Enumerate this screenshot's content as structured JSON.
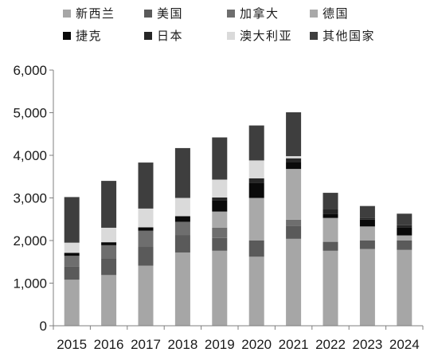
{
  "chart_data": {
    "type": "bar",
    "stacked": true,
    "categories": [
      "2015",
      "2016",
      "2017",
      "2018",
      "2019",
      "2020",
      "2021",
      "2022",
      "2023",
      "2024"
    ],
    "ylim": [
      0,
      6000
    ],
    "yticks": [
      0,
      1000,
      2000,
      3000,
      4000,
      5000,
      6000
    ],
    "ytick_labels": [
      "0",
      "1,000",
      "2,000",
      "3,000",
      "4,000",
      "5,000",
      "6,000"
    ],
    "grid": false,
    "legend_position": "top",
    "series": [
      {
        "name": "新西兰",
        "color": "#a6a6a6",
        "values": [
          1080,
          1190,
          1410,
          1720,
          1760,
          1620,
          2040,
          1760,
          1800,
          1780
        ]
      },
      {
        "name": "美国",
        "color": "#5a5a5a",
        "values": [
          310,
          380,
          440,
          410,
          300,
          380,
          310,
          210,
          200,
          220
        ]
      },
      {
        "name": "加拿大",
        "color": "#6e6e6e",
        "values": [
          250,
          320,
          380,
          310,
          240,
          0,
          140,
          0,
          0,
          0
        ]
      },
      {
        "name": "德国",
        "color": "#a9a9a9",
        "values": [
          0,
          0,
          0,
          0,
          380,
          1000,
          1190,
          560,
          330,
          120
        ]
      },
      {
        "name": "捷克",
        "color": "#0a0a0a",
        "values": [
          70,
          70,
          80,
          130,
          270,
          360,
          160,
          100,
          160,
          180
        ]
      },
      {
        "name": "日本",
        "color": "#262626",
        "values": [
          0,
          0,
          0,
          0,
          60,
          100,
          90,
          110,
          40,
          60
        ]
      },
      {
        "name": "澳大利亚",
        "color": "#dadada",
        "values": [
          240,
          340,
          440,
          430,
          420,
          420,
          50,
          0,
          0,
          0
        ]
      },
      {
        "name": "其他国家",
        "color": "#3e3e3e",
        "values": [
          1070,
          1100,
          1080,
          1170,
          990,
          820,
          1030,
          380,
          280,
          270
        ]
      }
    ]
  }
}
